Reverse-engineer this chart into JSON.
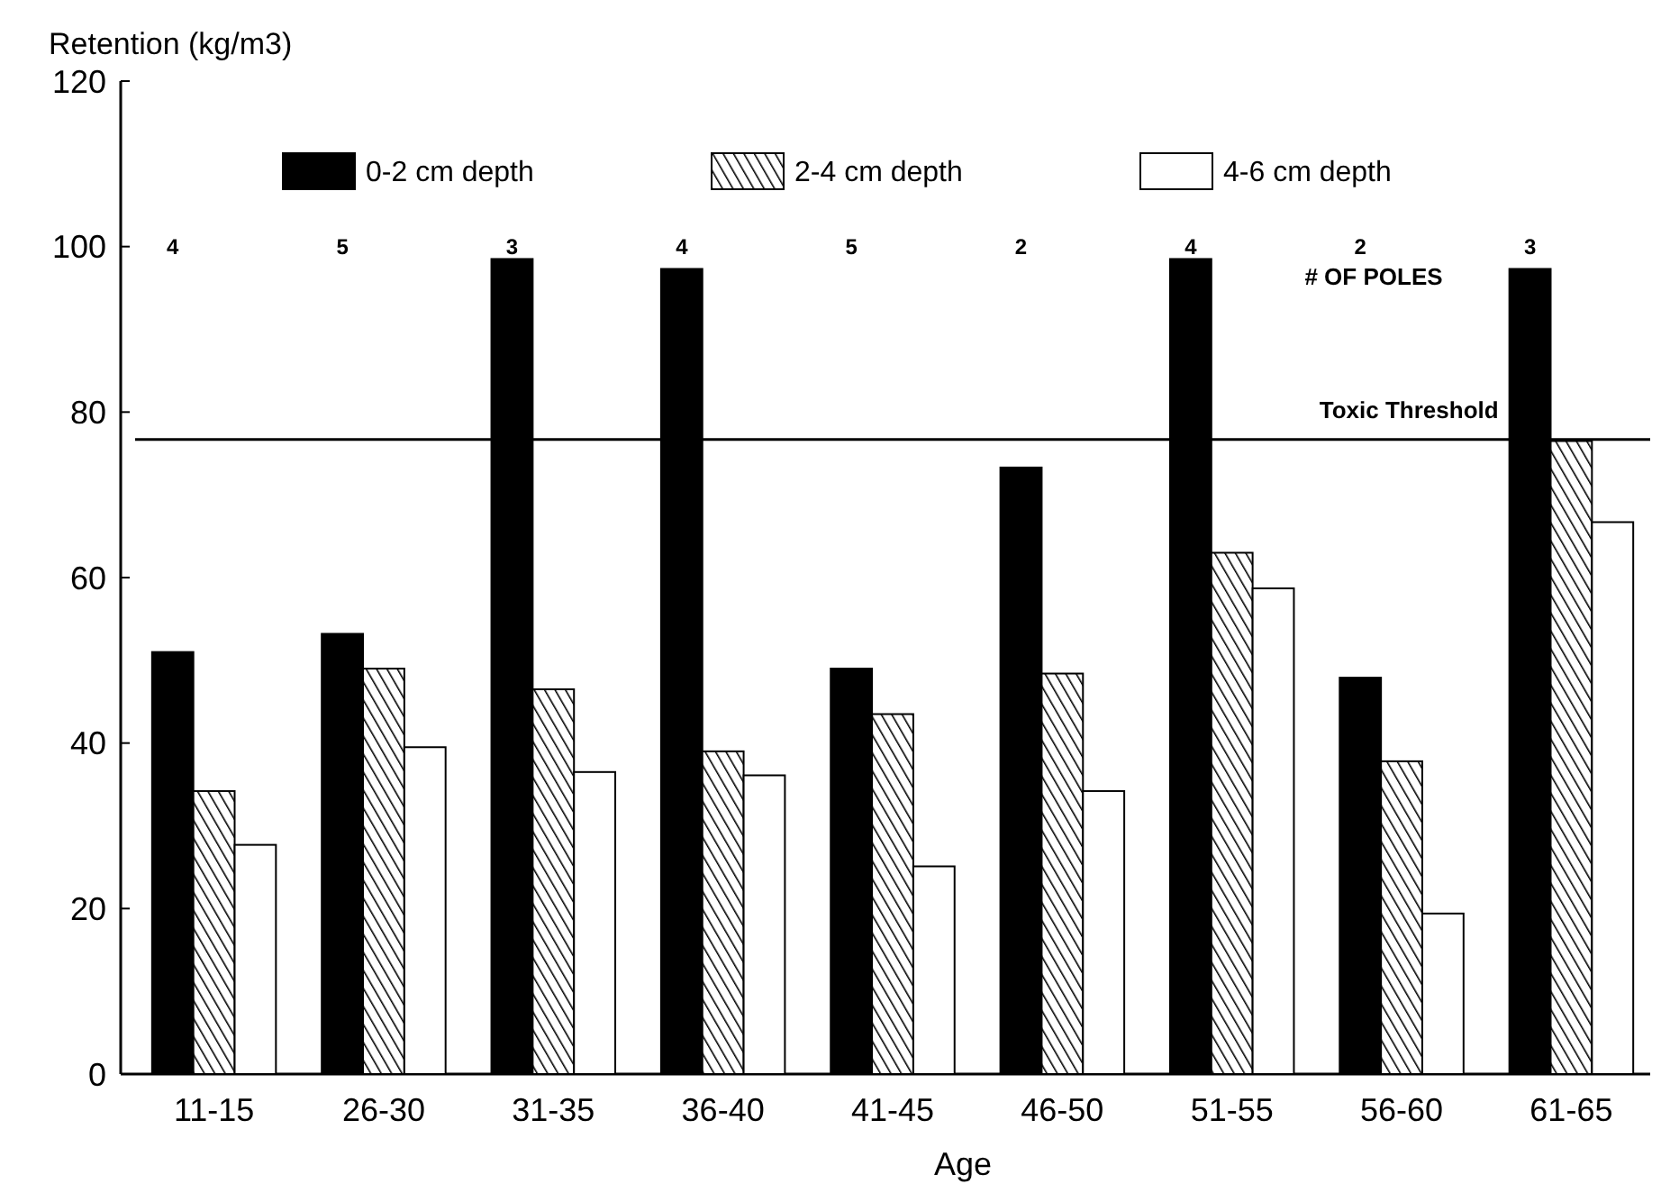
{
  "chart_data": {
    "type": "bar",
    "xlabel": "Age",
    "ylabel": "Retention (kg/m3)",
    "categories": [
      "11-15",
      "26-30",
      "31-35",
      "36-40",
      "41-45",
      "46-50",
      "51-55",
      "56-60",
      "61-65"
    ],
    "series": [
      {
        "name": "0-2 cm depth",
        "color": "#000000",
        "values": [
          51,
          53.2,
          98.5,
          97.3,
          49,
          73.3,
          98.5,
          47.9,
          97.3
        ]
      },
      {
        "name": "2-4 cm depth",
        "color": "#000000",
        "values": [
          34.2,
          49,
          46.5,
          39,
          43.5,
          48.4,
          63,
          37.8,
          76.5
        ]
      },
      {
        "name": "4-6 cm depth",
        "color": "#ffffff",
        "values": [
          27.7,
          39.5,
          36.5,
          36.1,
          25.1,
          34.2,
          58.7,
          19.4,
          66.7
        ]
      }
    ],
    "ylim": [
      0,
      120
    ],
    "yticks": [
      0,
      20,
      40,
      60,
      80,
      100,
      120
    ],
    "grid": false,
    "legend": "top",
    "ref_lines": [
      {
        "axis": "y",
        "value": 76.7,
        "label": "Toxic Threshold",
        "color": "#000000"
      }
    ],
    "annotations": [
      "4",
      "5",
      "3",
      "4",
      "5",
      "2",
      "4",
      "2",
      "3",
      "# OF POLES"
    ]
  }
}
